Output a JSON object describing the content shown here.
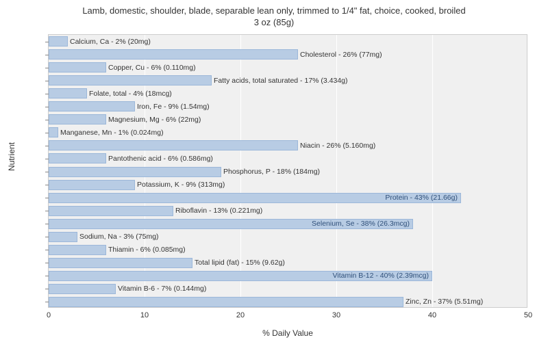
{
  "chart": {
    "type": "bar-horizontal",
    "title_line1": "Lamb, domestic, shoulder, blade, separable lean only, trimmed to 1/4\" fat, choice, cooked, broiled",
    "title_line2": "3 oz (85g)",
    "title_fontsize": 13,
    "x_axis_label": "% Daily Value",
    "y_axis_label": "Nutrient",
    "axis_label_fontsize": 12,
    "background_color": "#ffffff",
    "plot_background_color": "#f0f0f0",
    "grid_color": "#ffffff",
    "bar_fill_color": "#b8cce4",
    "bar_border_color": "#9bb7d9",
    "bar_label_fontsize": 10.5,
    "tick_fontsize": 11,
    "xlim_min": 0,
    "xlim_max": 50,
    "xtick_step": 10,
    "xticks": [
      0,
      10,
      20,
      30,
      40,
      50
    ],
    "nutrients": [
      {
        "label": "Calcium, Ca - 2% (20mg)",
        "value": 2,
        "inside": false
      },
      {
        "label": "Cholesterol - 26% (77mg)",
        "value": 26,
        "inside": false
      },
      {
        "label": "Copper, Cu - 6% (0.110mg)",
        "value": 6,
        "inside": false
      },
      {
        "label": "Fatty acids, total saturated - 17% (3.434g)",
        "value": 17,
        "inside": false
      },
      {
        "label": "Folate, total - 4% (18mcg)",
        "value": 4,
        "inside": false
      },
      {
        "label": "Iron, Fe - 9% (1.54mg)",
        "value": 9,
        "inside": false
      },
      {
        "label": "Magnesium, Mg - 6% (22mg)",
        "value": 6,
        "inside": false
      },
      {
        "label": "Manganese, Mn - 1% (0.024mg)",
        "value": 1,
        "inside": false
      },
      {
        "label": "Niacin - 26% (5.160mg)",
        "value": 26,
        "inside": false
      },
      {
        "label": "Pantothenic acid - 6% (0.586mg)",
        "value": 6,
        "inside": false
      },
      {
        "label": "Phosphorus, P - 18% (184mg)",
        "value": 18,
        "inside": false
      },
      {
        "label": "Potassium, K - 9% (313mg)",
        "value": 9,
        "inside": false
      },
      {
        "label": "Protein - 43% (21.66g)",
        "value": 43,
        "inside": true
      },
      {
        "label": "Riboflavin - 13% (0.221mg)",
        "value": 13,
        "inside": false
      },
      {
        "label": "Selenium, Se - 38% (26.3mcg)",
        "value": 38,
        "inside": true
      },
      {
        "label": "Sodium, Na - 3% (75mg)",
        "value": 3,
        "inside": false
      },
      {
        "label": "Thiamin - 6% (0.085mg)",
        "value": 6,
        "inside": false
      },
      {
        "label": "Total lipid (fat) - 15% (9.62g)",
        "value": 15,
        "inside": false
      },
      {
        "label": "Vitamin B-12 - 40% (2.39mcg)",
        "value": 40,
        "inside": true
      },
      {
        "label": "Vitamin B-6 - 7% (0.144mg)",
        "value": 7,
        "inside": false
      },
      {
        "label": "Zinc, Zn - 37% (5.51mg)",
        "value": 37,
        "inside": false
      }
    ]
  }
}
